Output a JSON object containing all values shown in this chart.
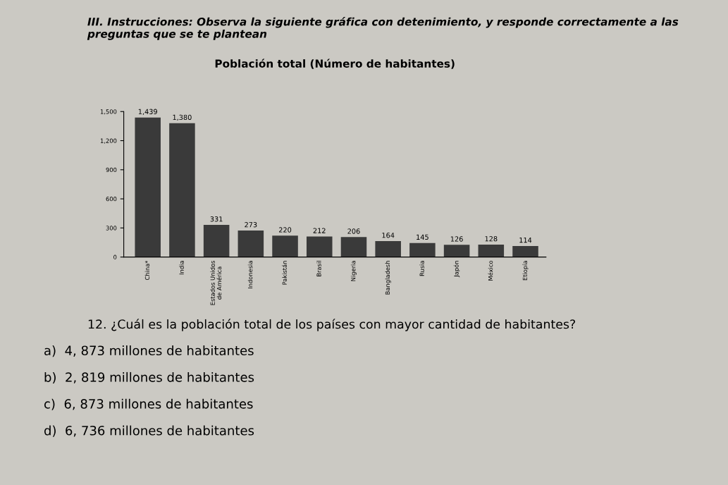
{
  "chart_data": {
    "type": "bar",
    "title": "Población total (Número de habitantes)",
    "categories": [
      "China*",
      "India",
      "Estados Unidos\nde América",
      "Indonesia",
      "Pakistán",
      "Brasil",
      "Nigeria",
      "Bangladesh",
      "Rusia",
      "Japón",
      "México",
      "Etiopía"
    ],
    "values": [
      1439,
      1380,
      331,
      273,
      220,
      212,
      206,
      164,
      145,
      126,
      128,
      114
    ],
    "value_labels": [
      "1,439",
      "1,380",
      "331",
      "273",
      "220",
      "212",
      "206",
      "164",
      "145",
      "126",
      "128",
      "114"
    ],
    "color": "#3a3a3a",
    "ylim": [
      0,
      1500
    ],
    "yticks": [
      {
        "value": 0,
        "label": "0"
      },
      {
        "value": 300,
        "label": "300"
      },
      {
        "value": 600,
        "label": "600"
      },
      {
        "value": 900,
        "label": "900"
      },
      {
        "value": 1200,
        "label": "1,200"
      },
      {
        "value": 1500,
        "label": "1,500"
      }
    ],
    "grid": false,
    "annotations": [
      "III. Instrucciones: Observa la siguiente gráfica con detenimiento, y responde correctamente a las preguntas que se te plantean",
      "12. ¿Cuál es la población total de los países con mayor cantidad de habitantes?",
      "a)  4, 873 millones de habitantes",
      "b)  2, 819 millones de habitantes",
      "c)  6, 873 millones de habitantes",
      "d)  6, 736 millones de habitantes"
    ]
  }
}
